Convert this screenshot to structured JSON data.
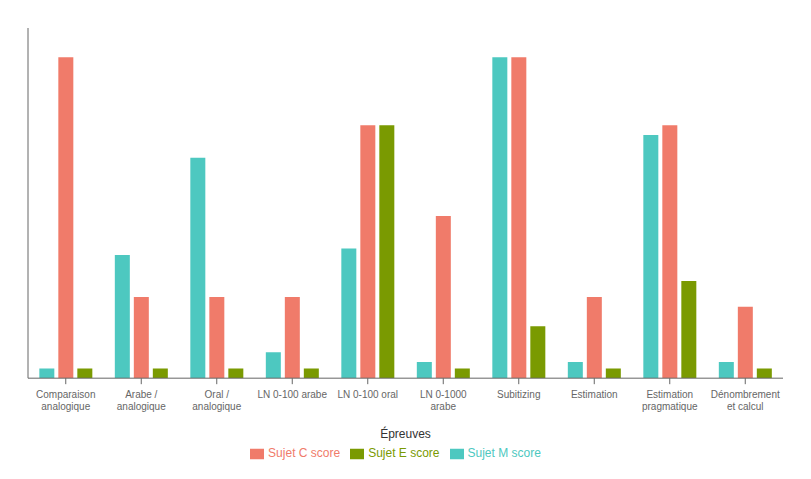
{
  "chart_data": {
    "type": "bar",
    "categories": [
      "Comparaison\nanalogique",
      "Arabe /\nanalogique",
      "Oral /\nanalogique",
      "LN 0-100 arabe",
      "LN 0-100 oral",
      "LN 0-1000\narabe",
      "Subitizing",
      "Estimation",
      "Estimation\npragmatique",
      "Dénombrement\net calcul"
    ],
    "series": [
      {
        "name": "Sujet M score",
        "color": "#4dc8c0",
        "values": [
          3,
          38,
          68,
          8,
          40,
          5,
          99,
          5,
          75,
          5
        ]
      },
      {
        "name": "Sujet C score",
        "color": "#f07b6a",
        "values": [
          99,
          25,
          25,
          25,
          78,
          50,
          99,
          25,
          78,
          22
        ]
      },
      {
        "name": "Sujet E score",
        "color": "#7a9a01",
        "values": [
          3,
          3,
          3,
          3,
          78,
          3,
          16,
          3,
          30,
          3
        ]
      }
    ],
    "xlabel": "Épreuves",
    "ylim": [
      0,
      108
    ],
    "yticks": [],
    "grid": false,
    "legend": "bottom",
    "tick_labels": "x"
  }
}
